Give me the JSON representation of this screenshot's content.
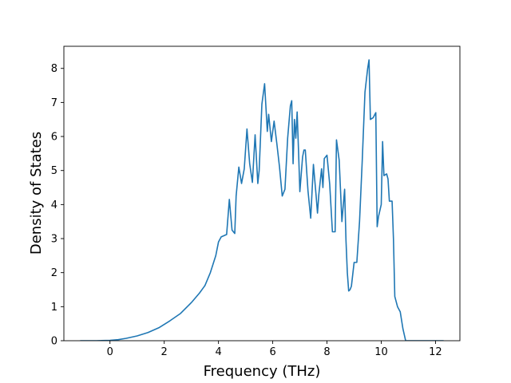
{
  "chart_data": {
    "type": "line",
    "title": "",
    "xlabel": "Frequency (THz)",
    "ylabel": "Density of States",
    "xlim": [
      -1.7,
      12.9
    ],
    "ylim": [
      0,
      8.65
    ],
    "xticks": [
      0,
      2,
      4,
      6,
      8,
      10,
      12
    ],
    "xtick_labels": [
      "0",
      "2",
      "4",
      "6",
      "8",
      "10",
      "12"
    ],
    "yticks": [
      0,
      1,
      2,
      3,
      4,
      5,
      6,
      7,
      8
    ],
    "ytick_labels": [
      "0",
      "1",
      "2",
      "3",
      "4",
      "5",
      "6",
      "7",
      "8"
    ],
    "grid": false,
    "series": [
      {
        "color": "#1f77b4",
        "x": [
          -1.1,
          -0.5,
          0.0,
          0.3,
          0.6,
          1.0,
          1.4,
          1.8,
          2.2,
          2.6,
          3.0,
          3.3,
          3.5,
          3.7,
          3.9,
          4.0,
          4.1,
          4.3,
          4.4,
          4.5,
          4.6,
          4.65,
          4.75,
          4.85,
          4.95,
          5.05,
          5.15,
          5.25,
          5.35,
          5.45,
          5.5,
          5.6,
          5.7,
          5.8,
          5.85,
          5.95,
          6.05,
          6.15,
          6.25,
          6.35,
          6.45,
          6.55,
          6.65,
          6.7,
          6.75,
          6.8,
          6.85,
          6.9,
          6.95,
          7.0,
          7.1,
          7.15,
          7.2,
          7.3,
          7.4,
          7.5,
          7.6,
          7.65,
          7.7,
          7.8,
          7.85,
          7.9,
          8.0,
          8.1,
          8.2,
          8.3,
          8.35,
          8.45,
          8.55,
          8.65,
          8.7,
          8.75,
          8.8,
          8.85,
          8.9,
          9.0,
          9.1,
          9.2,
          9.3,
          9.4,
          9.5,
          9.55,
          9.6,
          9.7,
          9.8,
          9.85,
          9.9,
          10.0,
          10.05,
          10.1,
          10.2,
          10.25,
          10.3,
          10.4,
          10.45,
          10.5,
          10.6,
          10.7,
          10.8,
          10.9,
          11.0,
          11.1,
          11.2,
          12.3
        ],
        "y": [
          0.0,
          0.0,
          0.01,
          0.03,
          0.07,
          0.14,
          0.24,
          0.38,
          0.58,
          0.8,
          1.12,
          1.4,
          1.62,
          2.0,
          2.5,
          2.9,
          3.05,
          3.12,
          4.15,
          3.25,
          3.15,
          4.25,
          5.1,
          4.62,
          5.05,
          6.22,
          5.2,
          4.65,
          6.05,
          4.62,
          5.0,
          6.95,
          7.55,
          6.15,
          6.65,
          5.85,
          6.45,
          5.8,
          5.1,
          4.25,
          4.45,
          5.95,
          6.9,
          7.05,
          5.2,
          6.5,
          5.95,
          6.72,
          5.6,
          4.38,
          5.4,
          5.6,
          5.6,
          4.4,
          3.6,
          5.18,
          4.25,
          3.75,
          4.3,
          5.05,
          4.5,
          5.35,
          5.45,
          4.6,
          3.2,
          3.2,
          5.9,
          5.3,
          3.5,
          4.45,
          2.95,
          2.0,
          1.46,
          1.5,
          1.6,
          2.3,
          2.3,
          3.5,
          5.3,
          7.3,
          8.0,
          8.25,
          6.5,
          6.55,
          6.7,
          3.35,
          3.65,
          4.0,
          5.85,
          4.85,
          4.9,
          4.75,
          4.1,
          4.1,
          3.0,
          1.3,
          1.0,
          0.85,
          0.35,
          0.0,
          0.0,
          0.0,
          0.0,
          0.0
        ]
      }
    ]
  }
}
